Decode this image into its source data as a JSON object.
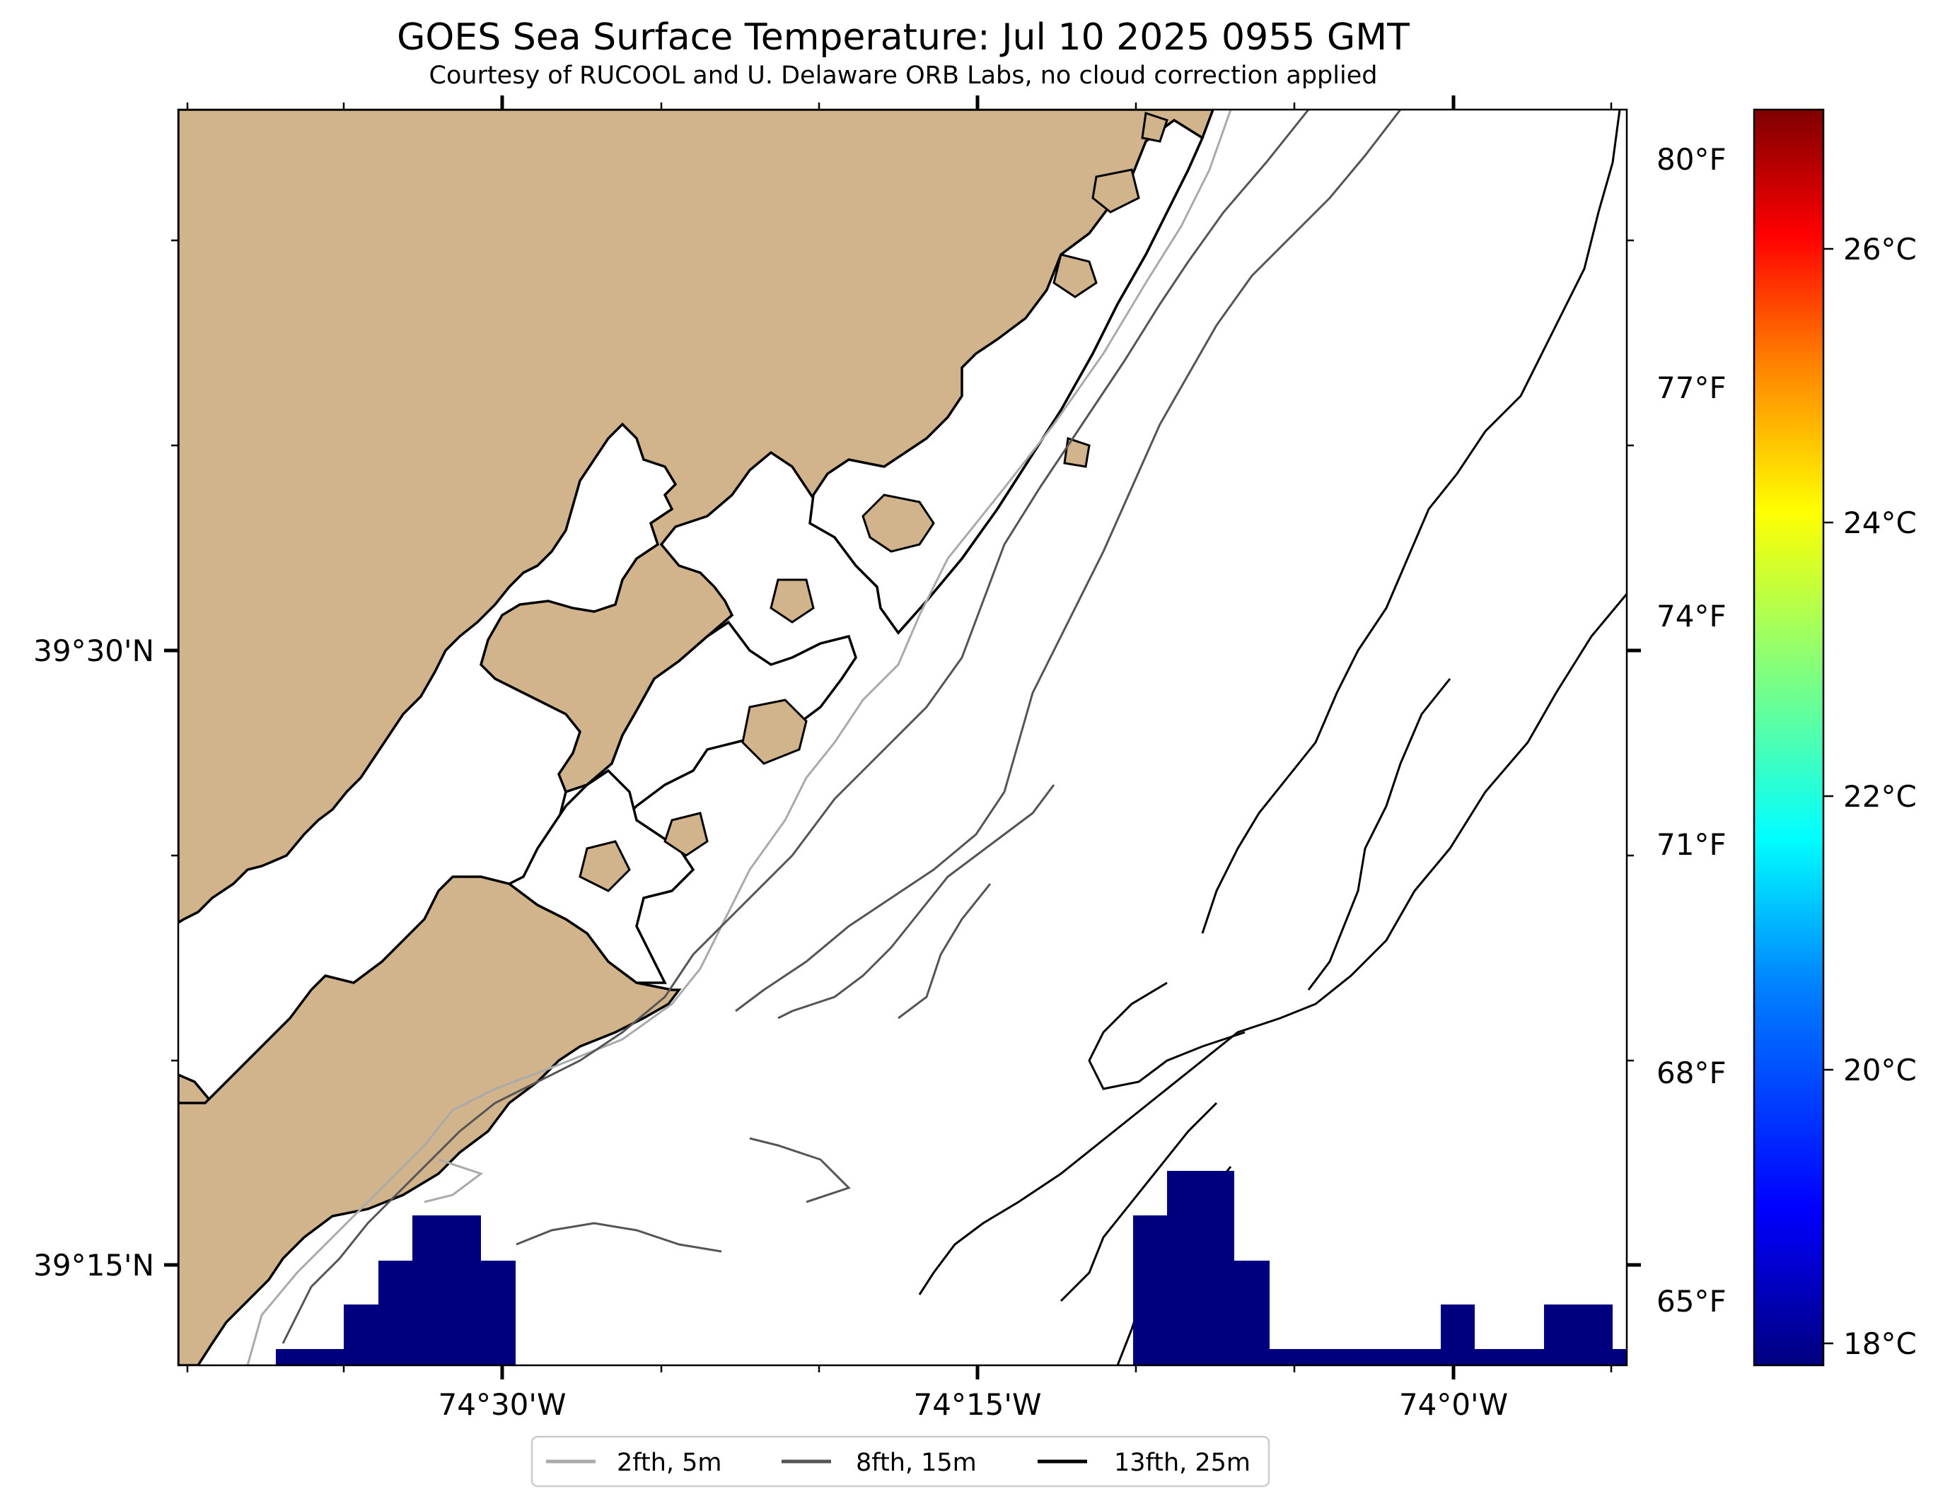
{
  "title": "GOES Sea Surface Temperature: Jul 10 2025 0955 GMT",
  "subtitle": "Courtesy of RUCOOL and U. Delaware ORB Labs, no cloud correction applied",
  "map": {
    "land_color": "#d2b48c",
    "water_color": "#ffffff",
    "sst_fill_color": "#00007f",
    "lon_ticks": [
      "74°30'W",
      "74°15'W",
      "74°0'W"
    ],
    "lat_ticks": [
      "39°30'N",
      "39°15'N"
    ]
  },
  "colorbar": {
    "celsius_ticks": [
      "26°C",
      "24°C",
      "22°C",
      "20°C",
      "18°C"
    ],
    "fahrenheit_ticks": [
      "80°F",
      "77°F",
      "74°F",
      "71°F",
      "68°F",
      "65°F"
    ],
    "colors": [
      "#00007f",
      "#0000ff",
      "#007fff",
      "#00ffff",
      "#7fff7f",
      "#ffff00",
      "#ff7f00",
      "#ff0000",
      "#7f0000"
    ]
  },
  "legend": {
    "items": [
      {
        "label": "2fth, 5m",
        "color": "#aaaaaa"
      },
      {
        "label": "8fth, 15m",
        "color": "#555555"
      },
      {
        "label": "13fth, 25m",
        "color": "#000000"
      }
    ]
  }
}
